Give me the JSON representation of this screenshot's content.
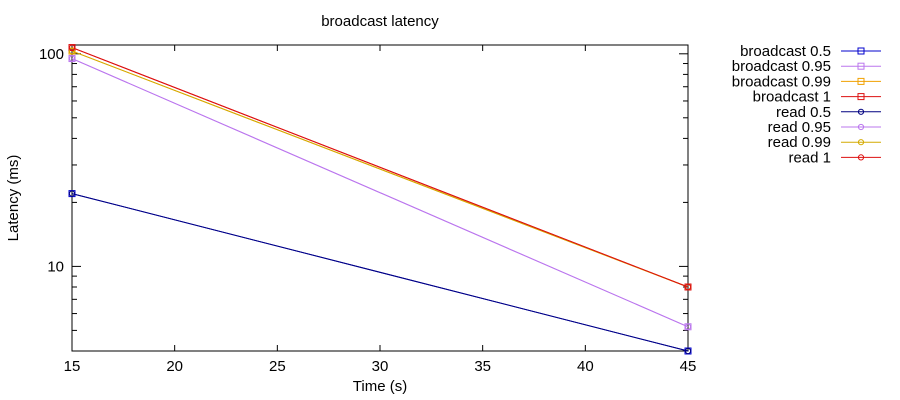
{
  "chart_data": {
    "type": "line",
    "title": "broadcast latency",
    "xlabel": "Time (s)",
    "ylabel": "Latency (ms)",
    "xlim": [
      15,
      45
    ],
    "ylim": [
      4,
      110
    ],
    "y_scale": "log",
    "grid": false,
    "legend_placement": "outside-right",
    "x_ticks": [
      15,
      20,
      25,
      30,
      35,
      40,
      45
    ],
    "y_ticks": [
      10,
      100
    ],
    "series": [
      {
        "name": "broadcast 0.5",
        "color": "#0000cc",
        "marker": "square",
        "x": [
          15,
          45
        ],
        "y": [
          22,
          4
        ]
      },
      {
        "name": "broadcast 0.95",
        "color": "#bb77ee",
        "marker": "square",
        "x": [
          15,
          45
        ],
        "y": [
          95,
          5.2
        ]
      },
      {
        "name": "broadcast 0.99",
        "color": "#f0a000",
        "marker": "square",
        "x": [
          15,
          45
        ],
        "y": [
          103,
          8
        ]
      },
      {
        "name": "broadcast 1",
        "color": "#dd1111",
        "marker": "square",
        "x": [
          15,
          45
        ],
        "y": [
          107,
          8
        ]
      },
      {
        "name": "read 0.5",
        "color": "#000080",
        "marker": "circle",
        "x": [
          15,
          45
        ],
        "y": [
          22,
          4
        ]
      },
      {
        "name": "read 0.95",
        "color": "#bb77ee",
        "marker": "circle",
        "x": [
          15,
          45
        ],
        "y": [
          95,
          5.2
        ]
      },
      {
        "name": "read 0.99",
        "color": "#d4aa00",
        "marker": "circle",
        "x": [
          15,
          45
        ],
        "y": [
          103,
          8
        ]
      },
      {
        "name": "read 1",
        "color": "#dd1111",
        "marker": "circle",
        "x": [
          15,
          45
        ],
        "y": [
          107,
          8
        ]
      }
    ]
  }
}
